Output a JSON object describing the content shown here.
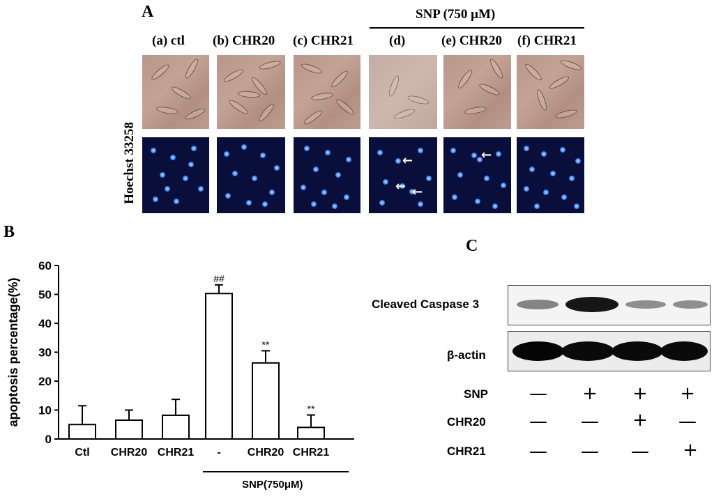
{
  "panel_a": {
    "letter": "A",
    "group_label": "SNP (750 μM)",
    "stain_label": "Hoechst 33258",
    "columns": [
      "(a) ctl",
      "(b) CHR20",
      "(c) CHR21",
      "(d)",
      "(e) CHR20",
      "(f) CHR21"
    ],
    "arrow_glyph": "←"
  },
  "panel_b": {
    "letter": "B",
    "group_label": "SNP(750μM)"
  },
  "panel_c": {
    "letter": "C",
    "blots": [
      "Cleaved  Caspase 3",
      "β-actin"
    ],
    "cleaved_band_intensity": [
      0.5,
      1.0,
      0.45,
      0.45
    ],
    "rows": [
      {
        "label": "SNP",
        "signs": [
          "—",
          "+",
          "+",
          "+"
        ]
      },
      {
        "label": "CHR20",
        "signs": [
          "—",
          "—",
          "+",
          "—"
        ]
      },
      {
        "label": "CHR21",
        "signs": [
          "—",
          "—",
          "—",
          "+"
        ]
      }
    ]
  },
  "chart_data": {
    "type": "bar",
    "categories": [
      "Ctl",
      "CHR20",
      "CHR21",
      "-",
      "CHR20",
      "CHR21"
    ],
    "values": [
      5,
      6.5,
      8.2,
      50.3,
      26.3,
      4
    ],
    "errors": [
      6.5,
      3.5,
      5.5,
      3,
      4.2,
      4.3
    ],
    "annotations": [
      "",
      "",
      "",
      "##",
      "**",
      "**"
    ],
    "ylabel": "apoptosis percentage(%)",
    "xlabel": "",
    "ylim": [
      0,
      60
    ],
    "yticks": [
      0,
      10,
      20,
      30,
      40,
      50,
      60
    ],
    "grid": false,
    "bar_color": "#ffffff"
  }
}
